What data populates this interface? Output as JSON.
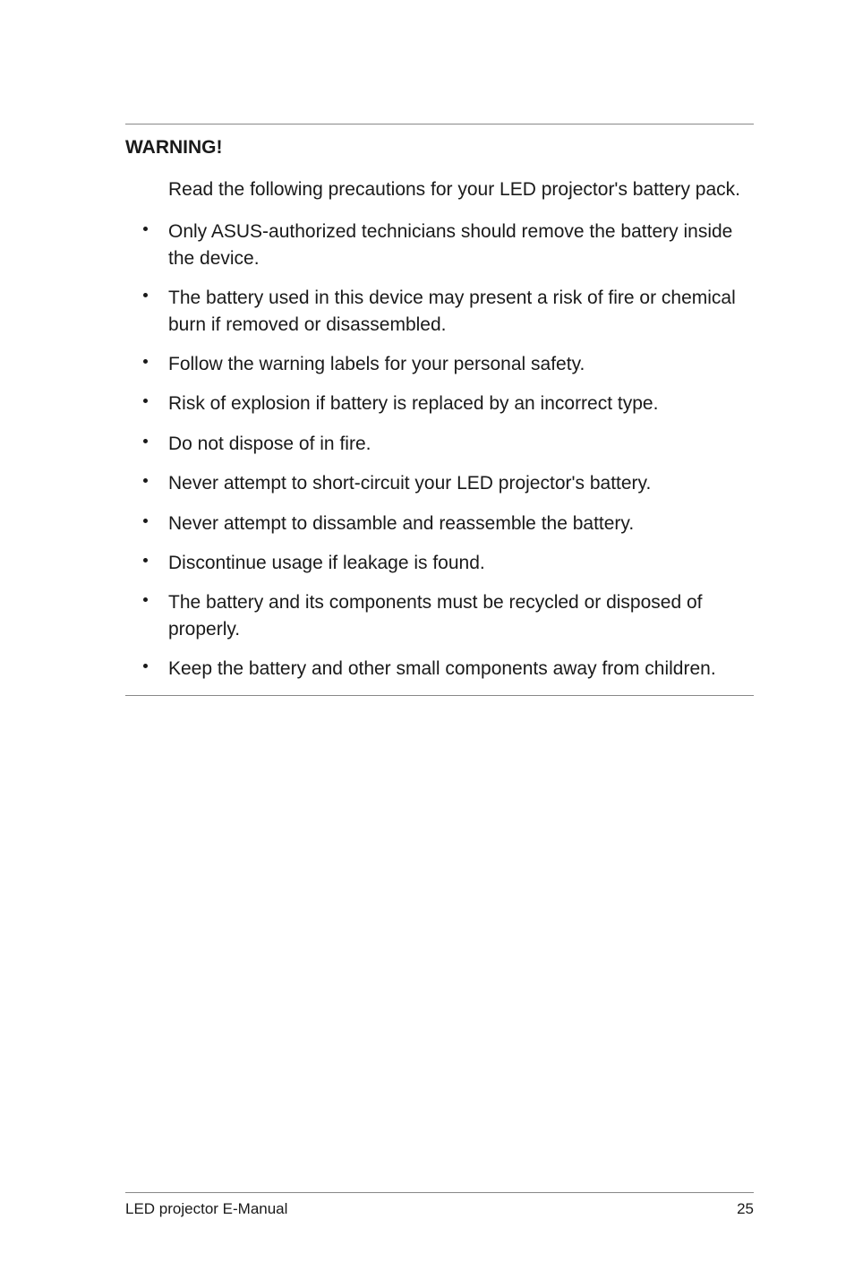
{
  "warning": {
    "label": "WARNING!",
    "intro": "Read the following precautions for your LED projector's battery pack.",
    "bullets": [
      "Only ASUS-authorized technicians should remove the battery inside the device.",
      "The battery used in this device may present a risk of fire or chemical burn if removed or disassembled.",
      "Follow the warning labels for your personal safety.",
      "Risk of explosion if battery is replaced by an incorrect type.",
      "Do not dispose of in fire.",
      "Never attempt to short-circuit your LED projector's battery.",
      "Never attempt to dissamble and reassemble the battery.",
      "Discontinue usage if leakage is found.",
      "The battery and its components must be recycled or disposed of properly.",
      "Keep the battery and other small components away from children."
    ]
  },
  "footer": {
    "doc_title": "LED projector E-Manual",
    "page_number": "25"
  },
  "colors": {
    "text": "#1a1a1a",
    "rule": "#888888",
    "background": "#ffffff"
  },
  "typography": {
    "body_fontsize": 21,
    "footer_fontsize": 17,
    "warning_weight": 700
  }
}
